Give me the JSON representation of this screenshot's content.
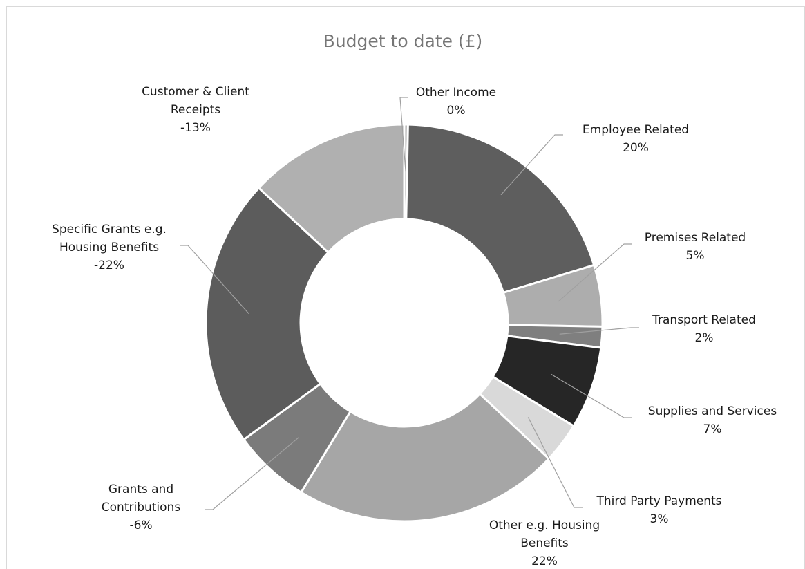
{
  "chart_data": {
    "type": "pie",
    "subtype": "doughnut",
    "title": "Budget to date (£)",
    "legend": "none",
    "slices": [
      {
        "label_lines": [
          "Other Income"
        ],
        "percent_label": "0%",
        "value": 0.3,
        "color": "#a9a9a9"
      },
      {
        "label_lines": [
          "Employee Related"
        ],
        "percent_label": "20%",
        "value": 20,
        "color": "#5e5e5e"
      },
      {
        "label_lines": [
          "Premises Related"
        ],
        "percent_label": "5%",
        "value": 5,
        "color": "#adadad"
      },
      {
        "label_lines": [
          "Transport Related"
        ],
        "percent_label": "2%",
        "value": 1.7,
        "color": "#7f7f7f"
      },
      {
        "label_lines": [
          "Supplies and Services"
        ],
        "percent_label": "7%",
        "value": 6.7,
        "color": "#262626"
      },
      {
        "label_lines": [
          "Third Party Payments"
        ],
        "percent_label": "3%",
        "value": 3.3,
        "color": "#d9d9d9"
      },
      {
        "label_lines": [
          "Other e.g. Housing",
          "Benefits"
        ],
        "percent_label": "22%",
        "value": 21.7,
        "color": "#a6a6a6"
      },
      {
        "label_lines": [
          "Grants and",
          "Contributions"
        ],
        "percent_label": "-6%",
        "value": 6.3,
        "color": "#7b7b7b"
      },
      {
        "label_lines": [
          "Specific Grants e.g.",
          "Housing Benefits"
        ],
        "percent_label": "-22%",
        "value": 21.9,
        "color": "#5c5c5c"
      },
      {
        "label_lines": [
          "Customer & Client",
          "Receipts"
        ],
        "percent_label": "-13%",
        "value": 13.1,
        "color": "#b0b0b0"
      }
    ]
  }
}
